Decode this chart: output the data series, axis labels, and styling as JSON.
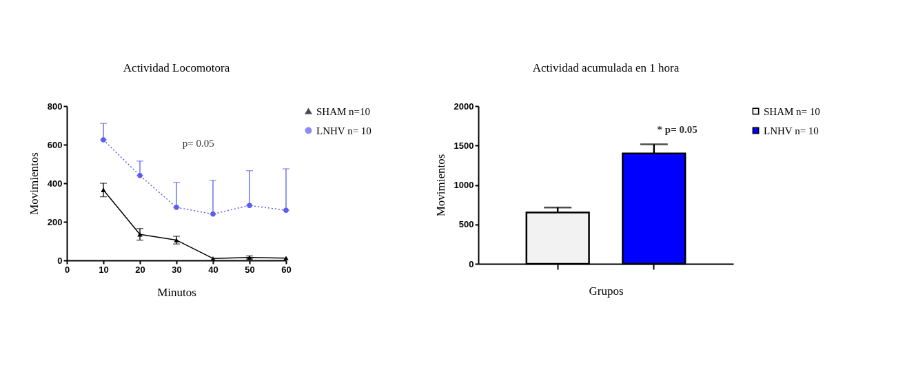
{
  "chart_data": [
    {
      "type": "line",
      "title": "Actividad Locomotora",
      "xlabel": "Minutos",
      "ylabel": "Movimientos",
      "x": [
        10,
        20,
        30,
        40,
        50,
        60
      ],
      "xlim": [
        0,
        60
      ],
      "xticks": [
        0,
        10,
        20,
        30,
        40,
        50,
        60
      ],
      "ylim": [
        0,
        800
      ],
      "yticks": [
        0,
        200,
        400,
        600,
        800
      ],
      "grid": false,
      "legend": "right",
      "annotations": [
        "p= 0.05"
      ],
      "series": [
        {
          "name": "SHAM n=10",
          "color": "#000000",
          "values": [
            365,
            135,
            105,
            10,
            15,
            12
          ],
          "errors": [
            35,
            30,
            20,
            null,
            8,
            null
          ],
          "marker": "triangle",
          "line_style": "solid"
        },
        {
          "name": "LNHV n= 10",
          "color": "#5a5cf5",
          "values": [
            625,
            440,
            275,
            240,
            285,
            260
          ],
          "errors": [
            [
              625,
              710
            ],
            [
              440,
              515
            ],
            [
              275,
              405
            ],
            [
              240,
              415
            ],
            [
              285,
              465
            ],
            [
              260,
              475
            ]
          ],
          "marker": "circle",
          "line_style": "dotted"
        }
      ]
    },
    {
      "type": "bar",
      "title": "Actividad acumulada en 1 hora",
      "xlabel": "Grupos",
      "ylabel": "Movimientos",
      "categories": [
        null,
        null
      ],
      "ylim": [
        0,
        2000
      ],
      "yticks": [
        0,
        500,
        1000,
        1500,
        2000
      ],
      "grid": false,
      "legend": "right",
      "annotations": [
        "* p= 0.05"
      ],
      "series": [
        {
          "name": "SHAM n= 10",
          "color": "#f2f2f2",
          "values": [
            650,
            null
          ],
          "errors": [
            [
              650,
              715
            ],
            null
          ]
        },
        {
          "name": "LNHV n= 10",
          "color": "#0000ff",
          "values": [
            null,
            1400
          ],
          "errors": [
            null,
            [
              1400,
              1515
            ]
          ]
        }
      ]
    }
  ]
}
